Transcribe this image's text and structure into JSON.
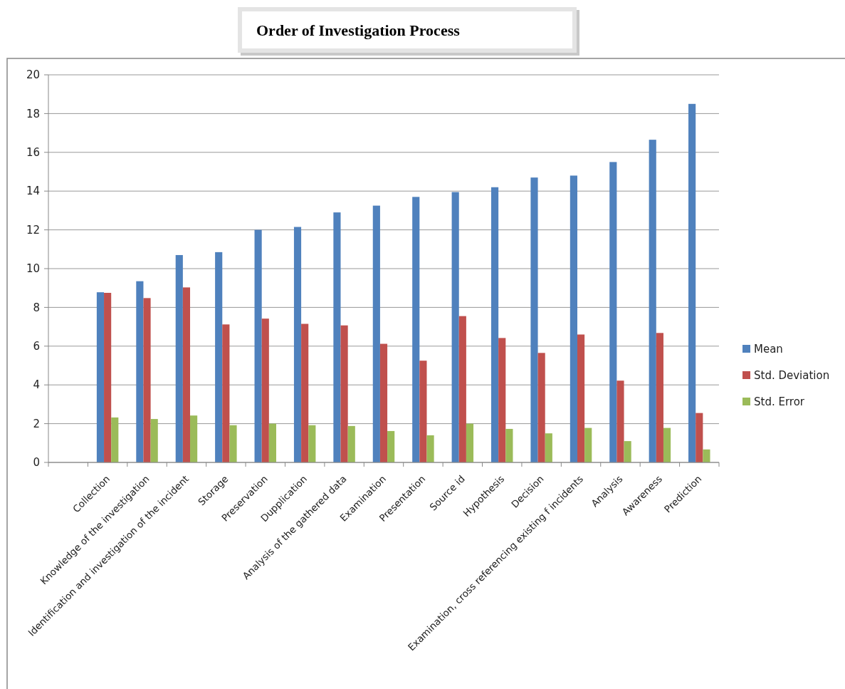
{
  "chart_data": {
    "type": "bar",
    "title": "Order of Investigation Process",
    "categories": [
      null,
      "Collection",
      "Knowledge of the investigation",
      "Identification and investigation of the incident",
      "Storage",
      "Preservation",
      "Dupplication",
      "Analysis of the gathered data",
      "Examination",
      "Presentation",
      "Source id",
      "Hypothesis",
      "Decision",
      "Examination, cross referencing existing f incidents",
      "Analysis",
      "Awareness",
      "Prediction"
    ],
    "series": [
      {
        "name": "Mean",
        "color": "#4f81bd",
        "values": [
          null,
          8.78,
          9.35,
          10.7,
          10.85,
          12.0,
          12.15,
          12.9,
          13.25,
          13.7,
          13.95,
          14.2,
          14.7,
          14.8,
          15.5,
          16.65,
          18.5
        ]
      },
      {
        "name": "Std. Deviation",
        "color": "#c0504d",
        "values": [
          null,
          8.75,
          8.48,
          9.03,
          7.12,
          7.42,
          7.15,
          7.07,
          6.12,
          5.25,
          7.55,
          6.42,
          5.65,
          6.6,
          4.22,
          6.68,
          2.55
        ]
      },
      {
        "name": "Std. Error",
        "color": "#9bbb59",
        "values": [
          null,
          2.32,
          2.24,
          2.42,
          1.92,
          2.0,
          1.92,
          1.88,
          1.62,
          1.4,
          2.0,
          1.73,
          1.5,
          1.78,
          1.1,
          1.78,
          0.67
        ]
      }
    ],
    "ylim": [
      0,
      20
    ],
    "yticks": [
      0,
      2,
      4,
      6,
      8,
      10,
      12,
      14,
      16,
      18,
      20
    ],
    "grid": "y",
    "legend": "right"
  }
}
